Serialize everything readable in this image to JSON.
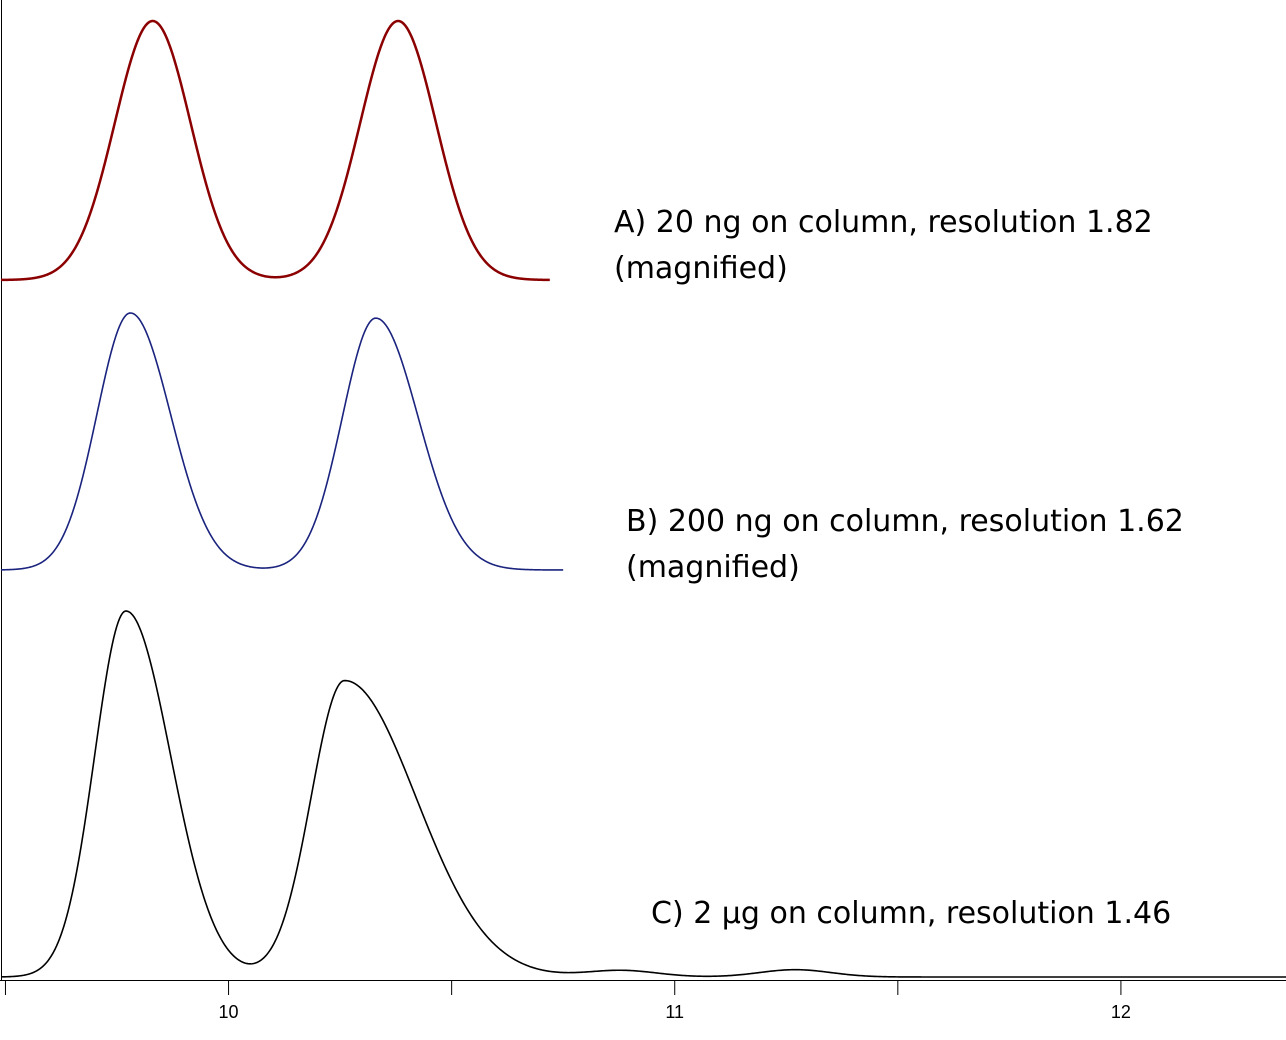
{
  "chart_data": {
    "type": "line",
    "title": "",
    "xlabel": "",
    "ylabel": "",
    "xlim": [
      9.49,
      12.37
    ],
    "x_ticks": [
      {
        "value": 9.5,
        "label": ""
      },
      {
        "value": 10,
        "label": "10"
      },
      {
        "value": 10.5,
        "label": ""
      },
      {
        "value": 11,
        "label": "11"
      },
      {
        "value": 11.5,
        "label": ""
      },
      {
        "value": 12,
        "label": "12"
      }
    ],
    "grid": false,
    "series": [
      {
        "id": "A",
        "color": "#8b0000",
        "x_end": 10.72,
        "peaks": [
          {
            "x": 9.83,
            "height": 1.0,
            "sigma_left": 0.085,
            "sigma_right": 0.085
          },
          {
            "x": 10.38,
            "height": 1.0,
            "sigma_left": 0.085,
            "sigma_right": 0.085
          }
        ],
        "small_peaks": []
      },
      {
        "id": "B",
        "color": "#1a237e",
        "x_end": 10.75,
        "peaks": [
          {
            "x": 9.78,
            "height": 1.0,
            "sigma_left": 0.075,
            "sigma_right": 0.09
          },
          {
            "x": 10.33,
            "height": 0.98,
            "sigma_left": 0.075,
            "sigma_right": 0.095
          }
        ],
        "small_peaks": []
      },
      {
        "id": "C",
        "color": "#000000",
        "x_end": 12.37,
        "peaks": [
          {
            "x": 9.77,
            "height": 1.0,
            "sigma_left": 0.07,
            "sigma_right": 0.1
          },
          {
            "x": 10.26,
            "height": 0.81,
            "sigma_left": 0.075,
            "sigma_right": 0.16
          }
        ],
        "small_peaks": [
          {
            "x": 10.88,
            "height": 0.018,
            "sigma_left": 0.08,
            "sigma_right": 0.08
          },
          {
            "x": 11.27,
            "height": 0.02,
            "sigma_left": 0.08,
            "sigma_right": 0.08
          }
        ]
      }
    ],
    "annotations": [
      {
        "series": "A",
        "lines": [
          "A) 20 ng on column, resolution 1.82",
          "(magnified)"
        ]
      },
      {
        "series": "B",
        "lines": [
          "B) 200 ng on column, resolution 1.62",
          "(magnified)"
        ]
      },
      {
        "series": "C",
        "lines": [
          "C) 2 µg on column, resolution 1.46"
        ]
      }
    ]
  }
}
